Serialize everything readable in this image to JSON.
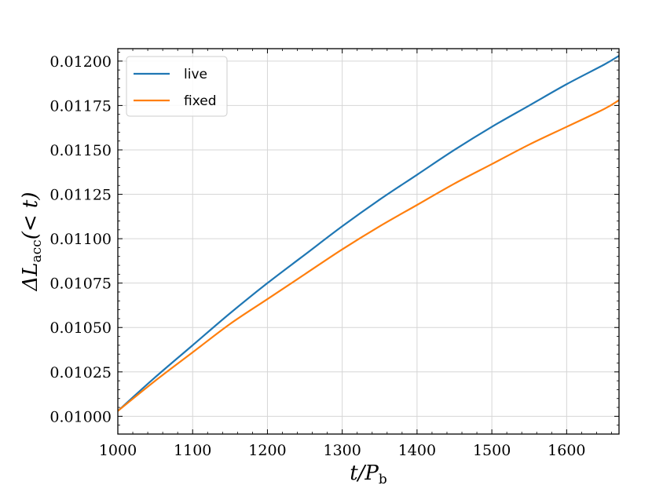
{
  "chart_data": {
    "type": "line",
    "xlabel": "t/P",
    "xlabel_sub": "b",
    "ylabel_prefix": "ΔL",
    "ylabel_sub": "acc",
    "ylabel_suffix": "(< t)",
    "xlim": [
      1000,
      1670
    ],
    "ylim": [
      0.0099,
      0.01207
    ],
    "x_ticks": [
      1000,
      1100,
      1200,
      1300,
      1400,
      1500,
      1600
    ],
    "x_tick_labels": [
      "1000",
      "1100",
      "1200",
      "1300",
      "1400",
      "1500",
      "1600"
    ],
    "y_ticks": [
      0.01,
      0.01025,
      0.0105,
      0.01075,
      0.011,
      0.01125,
      0.0115,
      0.01175,
      0.012
    ],
    "y_tick_labels": [
      "0.01000",
      "0.01025",
      "0.01050",
      "0.01075",
      "0.01100",
      "0.01125",
      "0.01150",
      "0.01175",
      "0.01200"
    ],
    "grid": true,
    "legend_position": "top-left",
    "series": [
      {
        "name": "live",
        "color": "#1f77b4",
        "x": [
          1000,
          1050,
          1100,
          1150,
          1200,
          1250,
          1300,
          1350,
          1400,
          1450,
          1500,
          1550,
          1600,
          1650,
          1670
        ],
        "y": [
          0.01003,
          0.01022,
          0.0104,
          0.01058,
          0.01075,
          0.01091,
          0.01107,
          0.01122,
          0.01136,
          0.0115,
          0.01163,
          0.01175,
          0.01187,
          0.01198,
          0.01203
        ]
      },
      {
        "name": "fixed",
        "color": "#ff7f0e",
        "x": [
          1000,
          1050,
          1100,
          1150,
          1200,
          1250,
          1300,
          1350,
          1400,
          1450,
          1500,
          1550,
          1600,
          1650,
          1670
        ],
        "y": [
          0.01003,
          0.0102,
          0.01036,
          0.01052,
          0.01066,
          0.0108,
          0.01094,
          0.01107,
          0.01119,
          0.01131,
          0.01142,
          0.01153,
          0.01163,
          0.01173,
          0.01178
        ]
      }
    ]
  }
}
